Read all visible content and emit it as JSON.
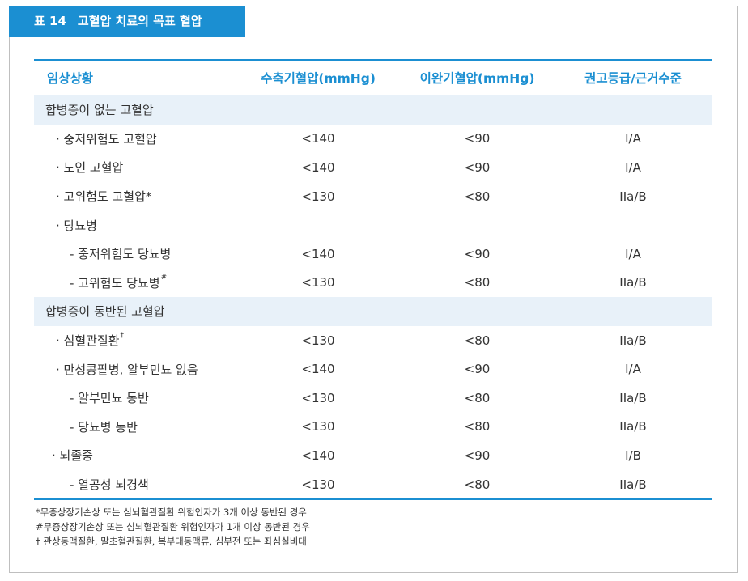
{
  "title": {
    "number": "표 14",
    "text": "고혈압 치료의 목표 혈압"
  },
  "header": {
    "col0": "임상상황",
    "col1": "수축기혈압(mmHg)",
    "col2": "이완기혈압(mmHg)",
    "col3": "권고등급/근거수준"
  },
  "rows": [
    {
      "label": "합병증이 없는 고혈압",
      "sup": "",
      "sbp": "",
      "dbp": "",
      "grade": ""
    },
    {
      "label": "· 중저위험도 고혈압",
      "sup": "",
      "sbp": "<140",
      "dbp": "<90",
      "grade": "I/A"
    },
    {
      "label": "· 노인 고혈압",
      "sup": "",
      "sbp": "<140",
      "dbp": "<90",
      "grade": "I/A"
    },
    {
      "label": "· 고위험도 고혈압*",
      "sup": "",
      "sbp": "<130",
      "dbp": "<80",
      "grade": "IIa/B"
    },
    {
      "label": "· 당뇨병",
      "sup": "",
      "sbp": "",
      "dbp": "",
      "grade": ""
    },
    {
      "label": "- 중저위험도 당뇨병",
      "sup": "",
      "sbp": "<140",
      "dbp": "<90",
      "grade": "I/A"
    },
    {
      "label": "- 고위험도 당뇨병",
      "sup": "#",
      "sbp": "<130",
      "dbp": "<80",
      "grade": "IIa/B"
    },
    {
      "label": "합병증이 동반된 고혈압",
      "sup": "",
      "sbp": "",
      "dbp": "",
      "grade": ""
    },
    {
      "label": "· 심혈관질환",
      "sup": "†",
      "sbp": "<130",
      "dbp": "<80",
      "grade": "IIa/B"
    },
    {
      "label": "· 만성콩팥병, 알부민뇨 없음",
      "sup": "",
      "sbp": "<140",
      "dbp": "<90",
      "grade": "I/A"
    },
    {
      "label": "- 알부민뇨 동반",
      "sup": "",
      "sbp": "<130",
      "dbp": "<80",
      "grade": "IIa/B"
    },
    {
      "label": "- 당뇨병 동반",
      "sup": "",
      "sbp": "<130",
      "dbp": "<80",
      "grade": "IIa/B"
    },
    {
      "label": "· 뇌졸중",
      "sup": "",
      "sbp": "<140",
      "dbp": "<90",
      "grade": "I/B"
    },
    {
      "label": "- 열공성 뇌경색",
      "sup": "",
      "sbp": "<130",
      "dbp": "<80",
      "grade": "IIa/B"
    }
  ],
  "notes": [
    "*무증상장기손상 또는 심뇌혈관질환 위험인자가 3개 이상 동반된 경우",
    "#무증상장기손상 또는 심뇌혈관질환 위험인자가 1개 이상 동반된 경우",
    " † 관상동맥질환, 말초혈관질환, 복부대동맥류, 심부전 또는 좌심실비대"
  ]
}
